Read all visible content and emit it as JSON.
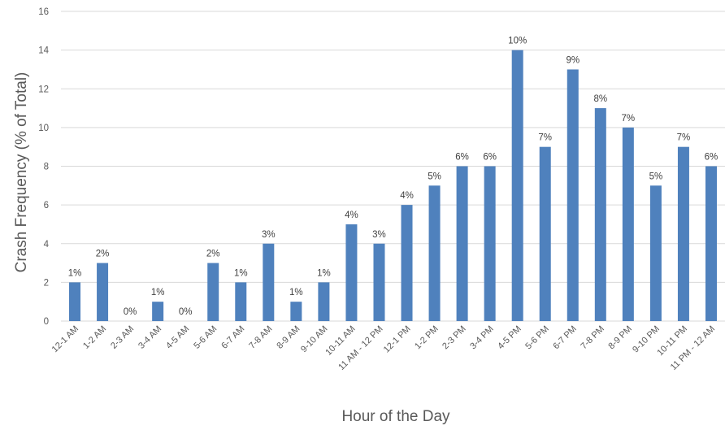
{
  "chart_data": {
    "type": "bar",
    "xlabel": "Hour of the Day",
    "ylabel": "Crash Frequency (% of Total)",
    "ylim": [
      0,
      16
    ],
    "yticks": [
      0,
      2,
      4,
      6,
      8,
      10,
      12,
      14,
      16
    ],
    "grid": true,
    "color": "#4f81bd",
    "categories": [
      "12-1 AM",
      "1-2 AM",
      "2-3 AM",
      "3-4 AM",
      "4-5 AM",
      "5-6 AM",
      "6-7 AM",
      "7-8 AM",
      "8-9 AM",
      "9-10 AM",
      "10-11 AM",
      "11 AM - 12 PM",
      "12-1 PM",
      "1-2 PM",
      "2-3 PM",
      "3-4 PM",
      "4-5 PM",
      "5-6 PM",
      "6-7 PM",
      "7-8 PM",
      "8-9 PM",
      "9-10 PM",
      "10-11 PM",
      "11 PM - 12 AM"
    ],
    "values": [
      2,
      3,
      0,
      1,
      0,
      3,
      2,
      4,
      1,
      2,
      5,
      4,
      6,
      7,
      8,
      8,
      14,
      9,
      13,
      11,
      10,
      7,
      9,
      8
    ],
    "data_labels": [
      "1%",
      "2%",
      "0%",
      "1%",
      "0%",
      "2%",
      "1%",
      "3%",
      "1%",
      "1%",
      "4%",
      "3%",
      "4%",
      "5%",
      "6%",
      "6%",
      "10%",
      "7%",
      "9%",
      "8%",
      "7%",
      "5%",
      "7%",
      "6%"
    ]
  }
}
